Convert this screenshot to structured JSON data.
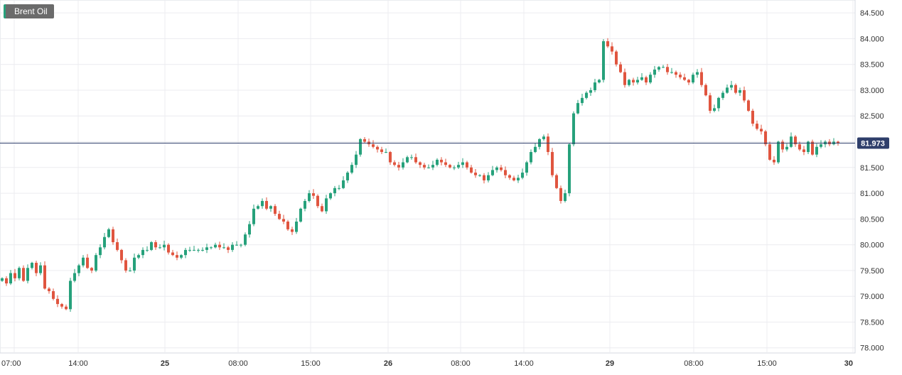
{
  "chart_data": {
    "type": "candlestick",
    "title": "Brent Oil",
    "last_price": "81.973",
    "y_ticks": [
      "84.500",
      "84.000",
      "83.500",
      "83.000",
      "82.500",
      "82.000",
      "81.500",
      "81.000",
      "80.500",
      "80.000",
      "79.500",
      "79.000",
      "78.500",
      "78.000"
    ],
    "ylim": [
      77.9,
      84.75
    ],
    "x_ticks": [
      "07:00",
      "14:00",
      "25",
      "08:00",
      "15:00",
      "26",
      "08:00",
      "14:00",
      "29",
      "08:00",
      "15:00",
      "30"
    ],
    "x_ticks_bold": [
      false,
      false,
      true,
      false,
      false,
      true,
      false,
      false,
      true,
      false,
      false,
      true
    ],
    "grid": true,
    "colors": {
      "up": "#26a17b",
      "down": "#e0553f",
      "last_line": "#2f3f6b",
      "badge": "#2f3f6b"
    },
    "price_path": [
      [
        0,
        79.35
      ],
      [
        6,
        79.25
      ],
      [
        12,
        79.45
      ],
      [
        18,
        79.35
      ],
      [
        24,
        79.55
      ],
      [
        30,
        79.3
      ],
      [
        36,
        79.55
      ],
      [
        42,
        79.65
      ],
      [
        48,
        79.45
      ],
      [
        54,
        79.6
      ],
      [
        60,
        79.15
      ],
      [
        66,
        79.1
      ],
      [
        72,
        78.95
      ],
      [
        78,
        78.85
      ],
      [
        84,
        78.8
      ],
      [
        90,
        78.75
      ],
      [
        96,
        79.3
      ],
      [
        102,
        79.45
      ],
      [
        108,
        79.6
      ],
      [
        114,
        79.75
      ],
      [
        120,
        79.55
      ],
      [
        126,
        79.5
      ],
      [
        132,
        79.8
      ],
      [
        138,
        79.95
      ],
      [
        144,
        80.15
      ],
      [
        150,
        80.3
      ],
      [
        156,
        80.05
      ],
      [
        162,
        79.9
      ],
      [
        168,
        79.7
      ],
      [
        174,
        79.5
      ],
      [
        180,
        79.5
      ],
      [
        186,
        79.75
      ],
      [
        192,
        79.8
      ],
      [
        198,
        79.9
      ],
      [
        204,
        79.9
      ],
      [
        210,
        80.05
      ],
      [
        216,
        79.95
      ],
      [
        222,
        79.95
      ],
      [
        228,
        80.0
      ],
      [
        234,
        79.85
      ],
      [
        240,
        79.8
      ],
      [
        246,
        79.75
      ],
      [
        252,
        79.8
      ],
      [
        258,
        79.9
      ],
      [
        264,
        79.9
      ],
      [
        270,
        79.9
      ],
      [
        276,
        79.9
      ],
      [
        282,
        79.9
      ],
      [
        288,
        79.95
      ],
      [
        294,
        79.95
      ],
      [
        300,
        80.0
      ],
      [
        306,
        79.95
      ],
      [
        312,
        79.95
      ],
      [
        318,
        79.9
      ],
      [
        324,
        80.0
      ],
      [
        330,
        80.0
      ],
      [
        336,
        80.0
      ],
      [
        342,
        80.2
      ],
      [
        348,
        80.4
      ],
      [
        354,
        80.7
      ],
      [
        360,
        80.75
      ],
      [
        366,
        80.85
      ],
      [
        372,
        80.7
      ],
      [
        378,
        80.75
      ],
      [
        384,
        80.6
      ],
      [
        390,
        80.5
      ],
      [
        396,
        80.45
      ],
      [
        402,
        80.3
      ],
      [
        408,
        80.25
      ],
      [
        414,
        80.45
      ],
      [
        420,
        80.7
      ],
      [
        426,
        80.85
      ],
      [
        432,
        81.0
      ],
      [
        438,
        80.95
      ],
      [
        444,
        80.75
      ],
      [
        450,
        80.65
      ],
      [
        456,
        80.9
      ],
      [
        462,
        81.0
      ],
      [
        468,
        81.1
      ],
      [
        474,
        81.1
      ],
      [
        480,
        81.25
      ],
      [
        486,
        81.4
      ],
      [
        492,
        81.55
      ],
      [
        498,
        81.75
      ],
      [
        504,
        82.05
      ],
      [
        510,
        82.0
      ],
      [
        516,
        81.95
      ],
      [
        522,
        81.9
      ],
      [
        528,
        81.85
      ],
      [
        534,
        81.8
      ],
      [
        540,
        81.8
      ],
      [
        546,
        81.6
      ],
      [
        552,
        81.55
      ],
      [
        558,
        81.5
      ],
      [
        564,
        81.6
      ],
      [
        570,
        81.7
      ],
      [
        576,
        81.7
      ],
      [
        582,
        81.6
      ],
      [
        588,
        81.55
      ],
      [
        594,
        81.5
      ],
      [
        600,
        81.5
      ],
      [
        606,
        81.55
      ],
      [
        612,
        81.65
      ],
      [
        618,
        81.6
      ],
      [
        624,
        81.55
      ],
      [
        630,
        81.5
      ],
      [
        636,
        81.5
      ],
      [
        642,
        81.55
      ],
      [
        648,
        81.6
      ],
      [
        654,
        81.5
      ],
      [
        660,
        81.4
      ],
      [
        666,
        81.35
      ],
      [
        672,
        81.35
      ],
      [
        678,
        81.25
      ],
      [
        684,
        81.35
      ],
      [
        690,
        81.45
      ],
      [
        696,
        81.5
      ],
      [
        702,
        81.45
      ],
      [
        708,
        81.35
      ],
      [
        714,
        81.3
      ],
      [
        720,
        81.25
      ],
      [
        726,
        81.3
      ],
      [
        732,
        81.4
      ],
      [
        738,
        81.6
      ],
      [
        744,
        81.8
      ],
      [
        750,
        81.9
      ],
      [
        756,
        82.05
      ],
      [
        762,
        82.1
      ],
      [
        768,
        81.8
      ],
      [
        774,
        81.35
      ],
      [
        780,
        81.1
      ],
      [
        786,
        80.85
      ],
      [
        792,
        81.0
      ],
      [
        798,
        81.95
      ],
      [
        804,
        82.55
      ],
      [
        810,
        82.75
      ],
      [
        816,
        82.85
      ],
      [
        822,
        82.95
      ],
      [
        828,
        83.0
      ],
      [
        834,
        83.15
      ],
      [
        840,
        83.2
      ],
      [
        846,
        83.95
      ],
      [
        852,
        83.85
      ],
      [
        858,
        83.75
      ],
      [
        864,
        83.5
      ],
      [
        870,
        83.35
      ],
      [
        876,
        83.1
      ],
      [
        882,
        83.2
      ],
      [
        888,
        83.15
      ],
      [
        894,
        83.2
      ],
      [
        900,
        83.25
      ],
      [
        906,
        83.15
      ],
      [
        912,
        83.3
      ],
      [
        918,
        83.4
      ],
      [
        924,
        83.45
      ],
      [
        930,
        83.45
      ],
      [
        936,
        83.35
      ],
      [
        942,
        83.35
      ],
      [
        948,
        83.3
      ],
      [
        954,
        83.25
      ],
      [
        960,
        83.2
      ],
      [
        966,
        83.15
      ],
      [
        972,
        83.3
      ],
      [
        978,
        83.35
      ],
      [
        984,
        83.1
      ],
      [
        990,
        82.9
      ],
      [
        996,
        82.6
      ],
      [
        1002,
        82.65
      ],
      [
        1008,
        82.85
      ],
      [
        1014,
        82.95
      ],
      [
        1020,
        83.05
      ],
      [
        1026,
        83.1
      ],
      [
        1032,
        82.95
      ],
      [
        1038,
        83.0
      ],
      [
        1044,
        82.8
      ],
      [
        1050,
        82.6
      ],
      [
        1056,
        82.35
      ],
      [
        1062,
        82.25
      ],
      [
        1068,
        82.2
      ],
      [
        1074,
        81.95
      ],
      [
        1080,
        81.65
      ],
      [
        1086,
        81.6
      ],
      [
        1092,
        82.0
      ],
      [
        1098,
        81.85
      ],
      [
        1104,
        81.9
      ],
      [
        1110,
        82.1
      ],
      [
        1116,
        81.95
      ],
      [
        1122,
        81.85
      ],
      [
        1128,
        81.8
      ],
      [
        1134,
        82.0
      ],
      [
        1140,
        81.75
      ],
      [
        1146,
        81.9
      ],
      [
        1152,
        81.95
      ],
      [
        1158,
        82.0
      ],
      [
        1164,
        81.95
      ],
      [
        1170,
        82.0
      ],
      [
        1176,
        81.973
      ]
    ]
  }
}
